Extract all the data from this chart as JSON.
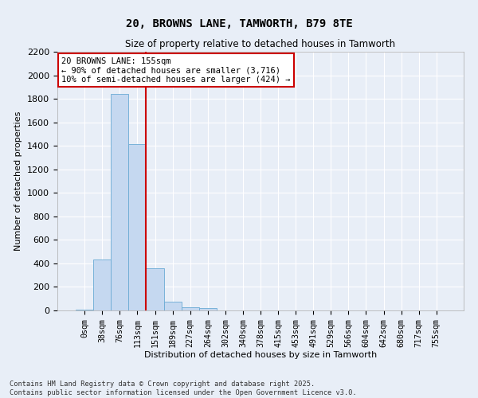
{
  "title_line1": "20, BROWNS LANE, TAMWORTH, B79 8TE",
  "title_line2": "Size of property relative to detached houses in Tamworth",
  "xlabel": "Distribution of detached houses by size in Tamworth",
  "ylabel": "Number of detached properties",
  "categories": [
    "0sqm",
    "38sqm",
    "76sqm",
    "113sqm",
    "151sqm",
    "189sqm",
    "227sqm",
    "264sqm",
    "302sqm",
    "340sqm",
    "378sqm",
    "415sqm",
    "453sqm",
    "491sqm",
    "529sqm",
    "566sqm",
    "604sqm",
    "642sqm",
    "680sqm",
    "717sqm",
    "755sqm"
  ],
  "values": [
    10,
    430,
    1840,
    1415,
    360,
    75,
    30,
    20,
    0,
    0,
    0,
    0,
    0,
    0,
    0,
    0,
    0,
    0,
    0,
    0,
    0
  ],
  "bar_color": "#c5d8f0",
  "bar_edge_color": "#6aaad4",
  "annotation_text": "20 BROWNS LANE: 155sqm\n← 90% of detached houses are smaller (3,716)\n10% of semi-detached houses are larger (424) →",
  "vline_x": 3.5,
  "ylim": [
    0,
    2200
  ],
  "yticks": [
    0,
    200,
    400,
    600,
    800,
    1000,
    1200,
    1400,
    1600,
    1800,
    2000,
    2200
  ],
  "bg_color": "#e8eef7",
  "grid_color": "#ffffff",
  "annotation_box_color": "#ffffff",
  "annotation_box_edge": "#cc0000",
  "vline_color": "#cc0000",
  "footer_line1": "Contains HM Land Registry data © Crown copyright and database right 2025.",
  "footer_line2": "Contains public sector information licensed under the Open Government Licence v3.0."
}
